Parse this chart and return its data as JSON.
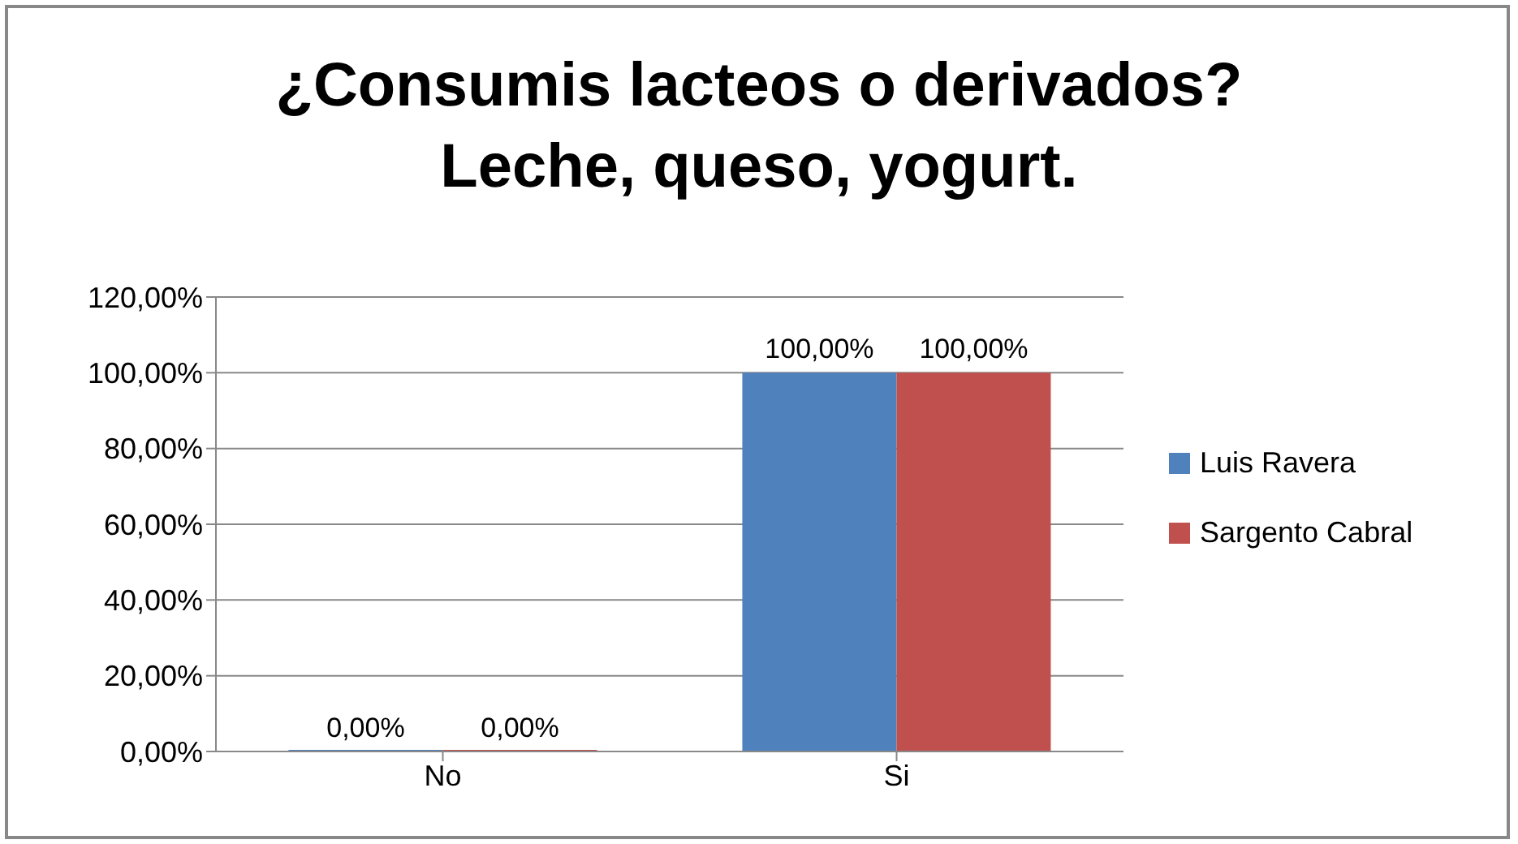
{
  "chart_data": {
    "type": "bar",
    "title": "¿Consumis lacteos o derivados? Leche, queso, yogurt.",
    "categories": [
      "No",
      "Si"
    ],
    "series": [
      {
        "name": "Luis Ravera",
        "color": "#4f81bd",
        "values": [
          0,
          100
        ],
        "value_labels": [
          "0,00%",
          "100,00%"
        ]
      },
      {
        "name": "Sargento Cabral",
        "color": "#c0504d",
        "values": [
          0,
          100
        ],
        "value_labels": [
          "0,00%",
          "100,00%"
        ]
      }
    ],
    "ylim": [
      0,
      120
    ],
    "yticks": [
      {
        "value": 0,
        "label": "0,00%"
      },
      {
        "value": 20,
        "label": "20,00%"
      },
      {
        "value": 40,
        "label": "40,00%"
      },
      {
        "value": 60,
        "label": "60,00%"
      },
      {
        "value": 80,
        "label": "80,00%"
      },
      {
        "value": 100,
        "label": "100,00%"
      },
      {
        "value": 120,
        "label": "120,00%"
      }
    ],
    "grid": "y",
    "legend": "right"
  }
}
